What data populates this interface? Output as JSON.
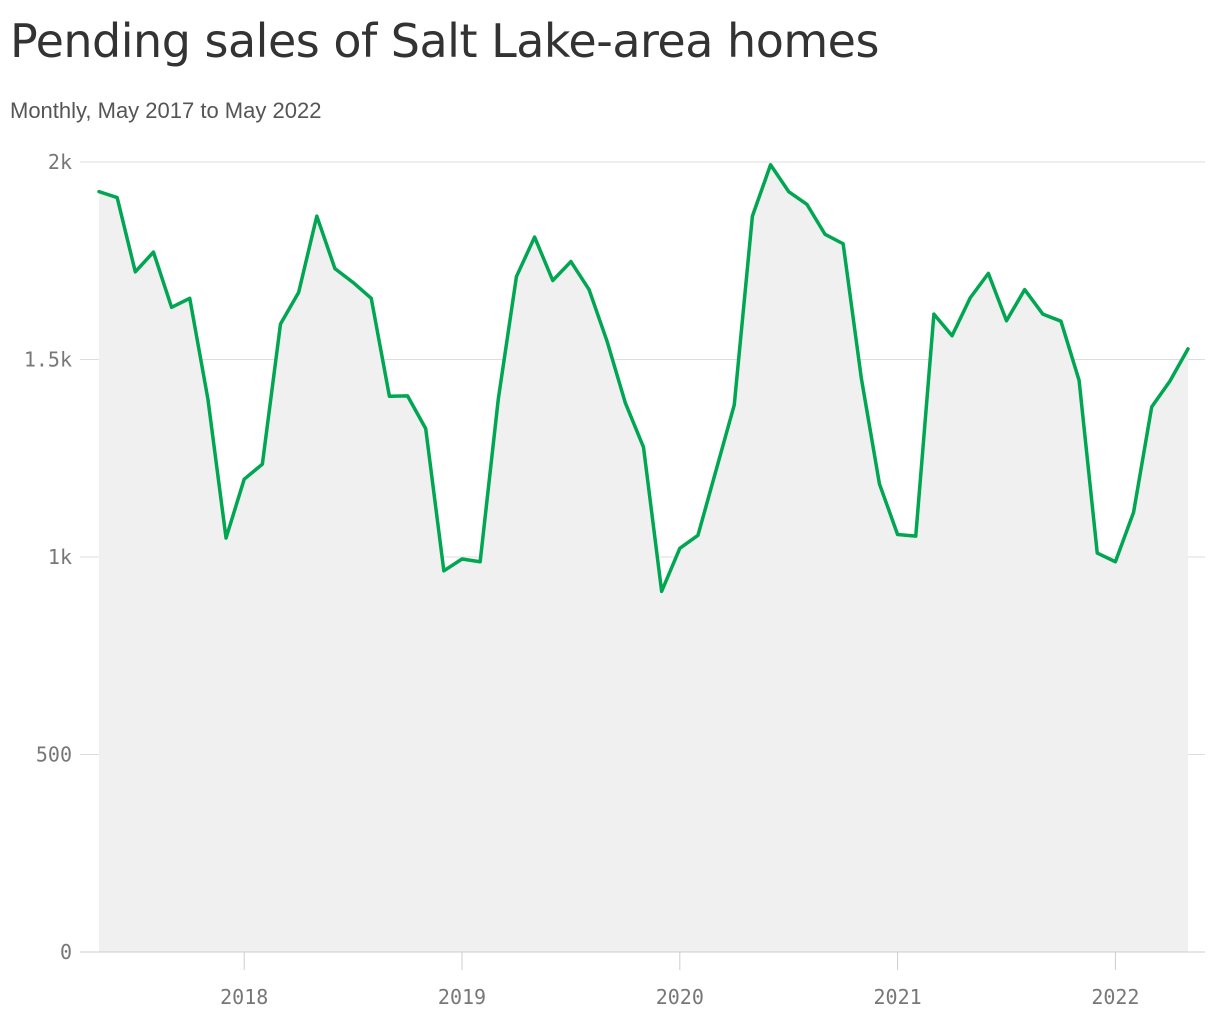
{
  "chart_data": {
    "type": "area",
    "title": "Pending sales of Salt Lake-area homes",
    "subtitle": "Monthly, May 2017 to May 2022",
    "xlabel": "",
    "ylabel": "",
    "start_month": "2017-05",
    "ylim": [
      0,
      2000
    ],
    "y_ticks": [
      {
        "value": 0,
        "label": "0"
      },
      {
        "value": 500,
        "label": "500"
      },
      {
        "value": 1000,
        "label": "1k"
      },
      {
        "value": 1500,
        "label": "1.5k"
      },
      {
        "value": 2000,
        "label": "2k"
      }
    ],
    "x_ticks": [
      {
        "date": "2018-01",
        "label": "2018"
      },
      {
        "date": "2019-01",
        "label": "2019"
      },
      {
        "date": "2020-01",
        "label": "2020"
      },
      {
        "date": "2021-01",
        "label": "2021"
      },
      {
        "date": "2022-01",
        "label": "2022"
      }
    ],
    "grid": true,
    "line_color": "#00a651",
    "fill_color": "#f0f0f0",
    "values": [
      1925,
      1910,
      1722,
      1772,
      1632,
      1655,
      1400,
      1048,
      1197,
      1235,
      1590,
      1670,
      1863,
      1730,
      1695,
      1655,
      1407,
      1408,
      1325,
      965,
      995,
      988,
      1400,
      1710,
      1810,
      1700,
      1748,
      1677,
      1545,
      1390,
      1278,
      913,
      1022,
      1055,
      1220,
      1385,
      1863,
      1993,
      1925,
      1893,
      1817,
      1793,
      1453,
      1185,
      1057,
      1053,
      1615,
      1560,
      1656,
      1718,
      1598,
      1677,
      1615,
      1597,
      1447,
      1010,
      988,
      1113,
      1380,
      1445,
      1527
    ]
  }
}
